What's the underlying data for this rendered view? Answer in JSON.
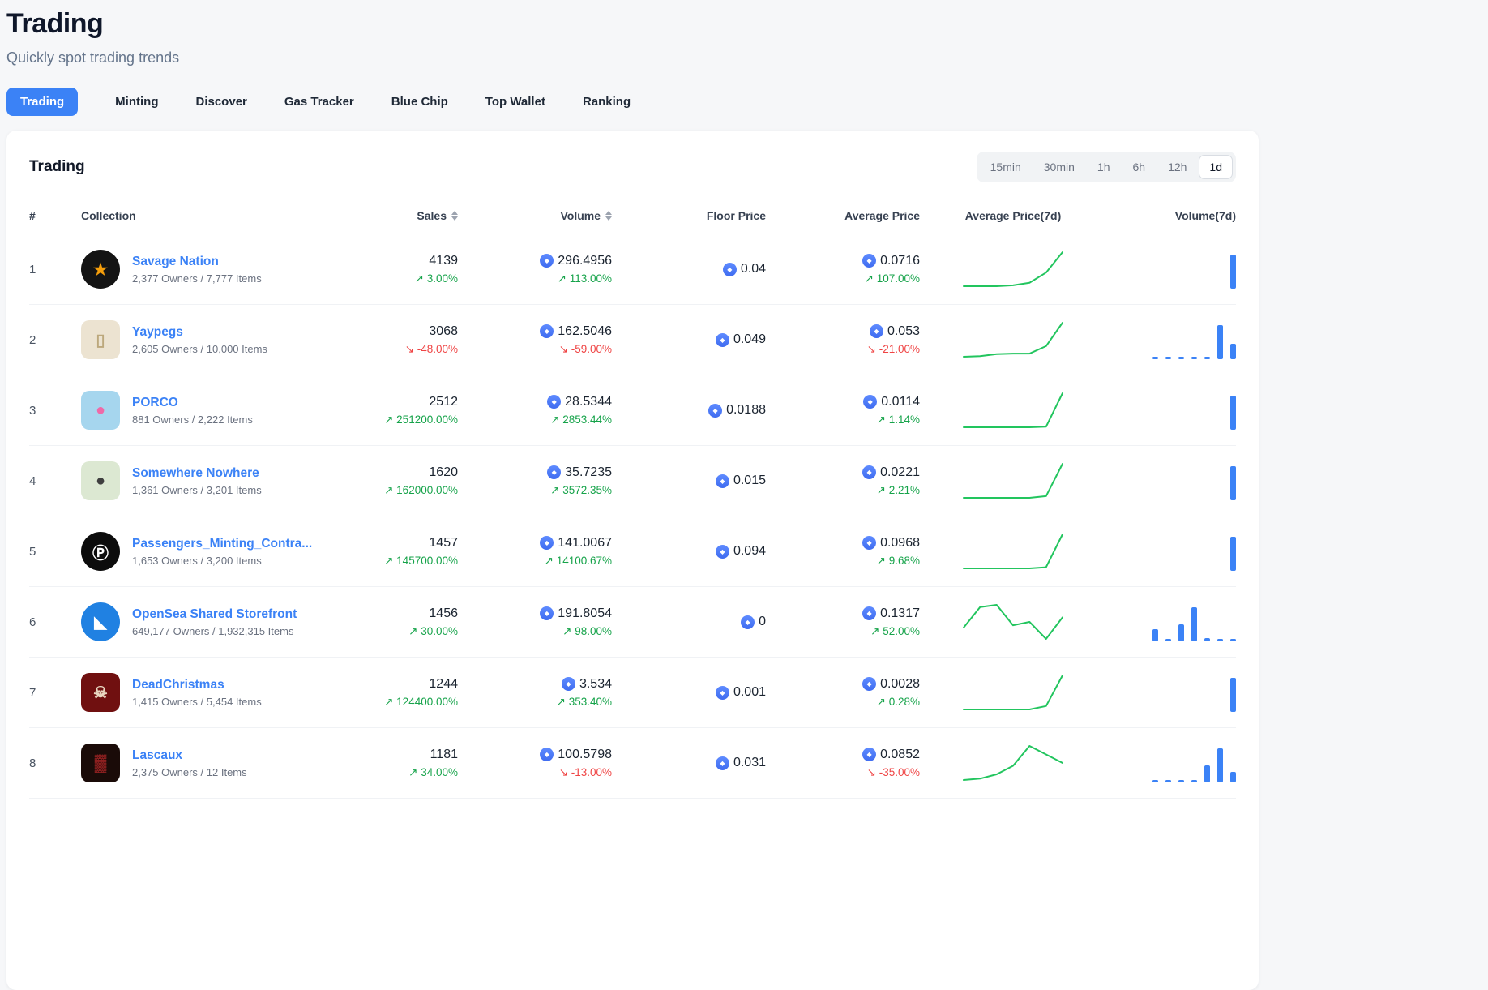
{
  "page": {
    "title": "Trading",
    "subtitle": "Quickly spot trading trends"
  },
  "nav_tabs": [
    {
      "label": "Trading",
      "active": true
    },
    {
      "label": "Minting",
      "active": false
    },
    {
      "label": "Discover",
      "active": false
    },
    {
      "label": "Gas Tracker",
      "active": false
    },
    {
      "label": "Blue Chip",
      "active": false
    },
    {
      "label": "Top Wallet",
      "active": false
    },
    {
      "label": "Ranking",
      "active": false
    }
  ],
  "card": {
    "title": "Trading",
    "time_ranges": [
      "15min",
      "30min",
      "1h",
      "6h",
      "12h",
      "1d"
    ],
    "selected_range": "1d"
  },
  "icons": {
    "arrow_up": "↗",
    "arrow_down": "↘",
    "eth": "◆",
    "sort": "sort-arrows"
  },
  "colors": {
    "accent": "#3b82f6",
    "up": "#16a34a",
    "down": "#ef4444",
    "spark": "#22c55e",
    "bar": "#3b82f6",
    "eth_icon": "#4d7dfe"
  },
  "table": {
    "columns": [
      {
        "label": "#",
        "sortable": false
      },
      {
        "label": "Collection",
        "sortable": false
      },
      {
        "label": "Sales",
        "sortable": true
      },
      {
        "label": "Volume",
        "sortable": true
      },
      {
        "label": "Floor Price",
        "sortable": false
      },
      {
        "label": "Average Price",
        "sortable": false
      },
      {
        "label": "Average Price(7d)",
        "sortable": false
      },
      {
        "label": "Volume(7d)",
        "sortable": false
      }
    ],
    "rows": [
      {
        "rank": "1",
        "name": "Savage Nation",
        "meta": "2,377 Owners / 7,777 Items",
        "avatar": {
          "shape": "circle",
          "bg": "#141414",
          "fg": "#f59e0b",
          "glyph": "★"
        },
        "sales": "4139",
        "sales_change": "3.00%",
        "sales_dir": "up",
        "volume": "296.4956",
        "volume_change": "113.00%",
        "volume_dir": "up",
        "floor": "0.04",
        "avg": "0.0716",
        "avg_change": "107.00%",
        "avg_dir": "up",
        "spark": [
          1,
          1,
          1,
          1.1,
          1.4,
          2.6,
          5
        ],
        "bars": [
          0,
          0,
          0,
          0,
          0,
          0,
          1
        ]
      },
      {
        "rank": "2",
        "name": "Yaypegs",
        "meta": "2,605 Owners / 10,000 Items",
        "avatar": {
          "shape": "rounded",
          "bg": "#ece3d1",
          "fg": "#bca87c",
          "glyph": "▯"
        },
        "sales": "3068",
        "sales_change": "-48.00%",
        "sales_dir": "down",
        "volume": "162.5046",
        "volume_change": "-59.00%",
        "volume_dir": "down",
        "floor": "0.049",
        "avg": "0.053",
        "avg_change": "-21.00%",
        "avg_dir": "down",
        "spark": [
          1,
          1.05,
          1.25,
          1.3,
          1.3,
          2,
          4.2
        ],
        "bars": [
          0.06,
          0.03,
          0.05,
          0.05,
          0.06,
          1,
          0.45
        ]
      },
      {
        "rank": "3",
        "name": "PORCO",
        "meta": "881 Owners / 2,222 Items",
        "avatar": {
          "shape": "rounded",
          "bg": "#a6d6ee",
          "fg": "#ef6aa8",
          "glyph": "●"
        },
        "sales": "2512",
        "sales_change": "251200.00%",
        "sales_dir": "up",
        "volume": "28.5344",
        "volume_change": "2853.44%",
        "volume_dir": "up",
        "floor": "0.0188",
        "avg": "0.0114",
        "avg_change": "1.14%",
        "avg_dir": "up",
        "spark": [
          1,
          1,
          1,
          1,
          1,
          1.05,
          4
        ],
        "bars": [
          0,
          0,
          0,
          0,
          0,
          0,
          1
        ]
      },
      {
        "rank": "4",
        "name": "Somewhere Nowhere",
        "meta": "1,361 Owners / 3,201 Items",
        "avatar": {
          "shape": "rounded",
          "bg": "#dce8d2",
          "fg": "#3f3f3f",
          "glyph": "●"
        },
        "sales": "1620",
        "sales_change": "162000.00%",
        "sales_dir": "up",
        "volume": "35.7235",
        "volume_change": "3572.35%",
        "volume_dir": "up",
        "floor": "0.015",
        "avg": "0.0221",
        "avg_change": "2.21%",
        "avg_dir": "up",
        "spark": [
          1,
          1,
          1,
          1,
          1,
          1.15,
          4
        ],
        "bars": [
          0,
          0,
          0,
          0,
          0,
          0,
          1
        ]
      },
      {
        "rank": "5",
        "name": "Passengers_Minting_Contra...",
        "meta": "1,653 Owners / 3,200 Items",
        "avatar": {
          "shape": "circle",
          "bg": "#0c0c0c",
          "fg": "#ffffff",
          "glyph": "Ⓟ"
        },
        "sales": "1457",
        "sales_change": "145700.00%",
        "sales_dir": "up",
        "volume": "141.0067",
        "volume_change": "14100.67%",
        "volume_dir": "up",
        "floor": "0.094",
        "avg": "0.0968",
        "avg_change": "9.68%",
        "avg_dir": "up",
        "spark": [
          1,
          1,
          1,
          1,
          1,
          1.1,
          4
        ],
        "bars": [
          0,
          0,
          0,
          0,
          0,
          0,
          1
        ]
      },
      {
        "rank": "6",
        "name": "OpenSea Shared Storefront",
        "meta": "649,177 Owners / 1,932,315 Items",
        "avatar": {
          "shape": "circle",
          "bg": "#2081e2",
          "fg": "#ffffff",
          "glyph": "◣"
        },
        "sales": "1456",
        "sales_change": "30.00%",
        "sales_dir": "up",
        "volume": "191.8054",
        "volume_change": "98.00%",
        "volume_dir": "up",
        "floor": "0",
        "avg": "0.1317",
        "avg_change": "52.00%",
        "avg_dir": "up",
        "spark": [
          2.2,
          4,
          4.2,
          2.4,
          2.7,
          1.2,
          3.1
        ],
        "bars": [
          0.35,
          0.06,
          0.5,
          1,
          0.1,
          0.08,
          0.08
        ]
      },
      {
        "rank": "7",
        "name": "DeadChristmas",
        "meta": "1,415 Owners / 5,454 Items",
        "avatar": {
          "shape": "rounded",
          "bg": "#701010",
          "fg": "#ead9c2",
          "glyph": "☠"
        },
        "sales": "1244",
        "sales_change": "124400.00%",
        "sales_dir": "up",
        "volume": "3.534",
        "volume_change": "353.40%",
        "volume_dir": "up",
        "floor": "0.001",
        "avg": "0.0028",
        "avg_change": "0.28%",
        "avg_dir": "up",
        "spark": [
          1,
          1,
          1,
          1,
          1,
          1.3,
          4
        ],
        "bars": [
          0,
          0,
          0,
          0,
          0,
          0,
          1
        ]
      },
      {
        "rank": "8",
        "name": "Lascaux",
        "meta": "2,375 Owners / 12 Items",
        "avatar": {
          "shape": "rounded",
          "bg": "#1a0b08",
          "fg": "#8f2020",
          "glyph": "▓"
        },
        "sales": "1181",
        "sales_change": "34.00%",
        "sales_dir": "up",
        "volume": "100.5798",
        "volume_change": "-13.00%",
        "volume_dir": "down",
        "floor": "0.031",
        "avg": "0.0852",
        "avg_change": "-35.00%",
        "avg_dir": "down",
        "spark": [
          1.2,
          1.3,
          1.6,
          2.2,
          3.6,
          3,
          2.4
        ],
        "bars": [
          0.05,
          0.05,
          0.05,
          0.05,
          0.5,
          1,
          0.3
        ]
      }
    ]
  }
}
